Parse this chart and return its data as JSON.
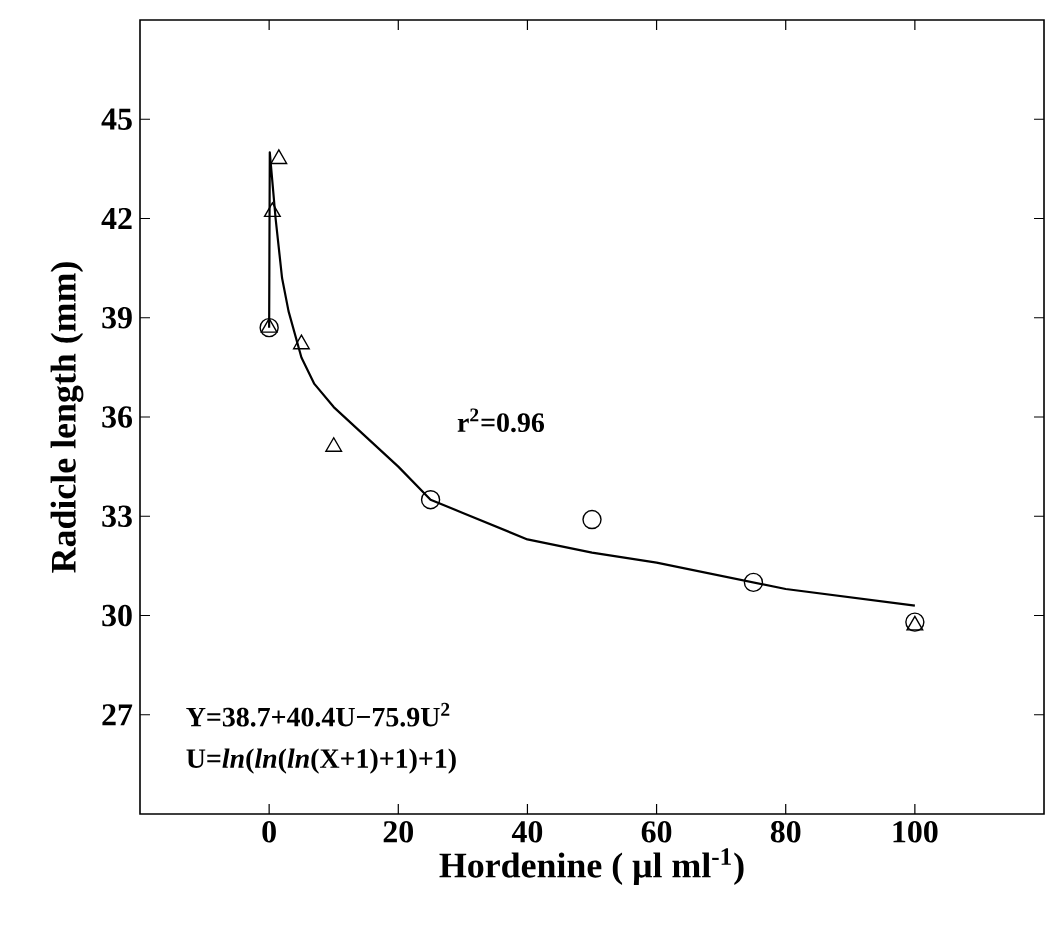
{
  "chart_data": {
    "type": "scatter",
    "xlabel": "Hordenine ( μl ml$^{-1}$)",
    "ylabel": "Radicle length (mm)",
    "xlim": [
      -20,
      120
    ],
    "xticks": [
      0,
      20,
      40,
      60,
      80,
      100
    ],
    "ylim": [
      24,
      48
    ],
    "yticks": [
      27,
      30,
      33,
      36,
      39,
      42,
      45
    ],
    "grid": false,
    "annotations": [
      "r$^{2}$=0.96",
      "Y=38.7+40.4U−75.9U$^{2}$",
      "U=*ln*(*ln*(*ln*(X+1)+1)+1)"
    ],
    "series": [
      {
        "marker": "circle",
        "color": "#000000",
        "x": [
          0,
          25,
          50,
          75,
          100
        ],
        "values": [
          38.7,
          33.5,
          32.9,
          31.0,
          29.8
        ]
      },
      {
        "marker": "triangle",
        "color": "#000000",
        "x": [
          0,
          0.5,
          1.5,
          5,
          10,
          100
        ],
        "values": [
          38.7,
          42.2,
          43.8,
          38.2,
          35.1,
          29.7
        ]
      },
      {
        "type": "line",
        "marker": "none",
        "color": "#000000",
        "x": [
          0,
          0.1,
          1,
          2,
          3,
          5,
          7,
          10,
          15,
          20,
          25,
          30,
          40,
          50,
          60,
          80,
          100
        ],
        "values": [
          38.7,
          44.0,
          42.0,
          40.2,
          39.2,
          37.8,
          37.0,
          36.3,
          35.4,
          34.5,
          33.5,
          33.1,
          32.3,
          31.9,
          31.6,
          30.8,
          30.3
        ]
      }
    ]
  }
}
